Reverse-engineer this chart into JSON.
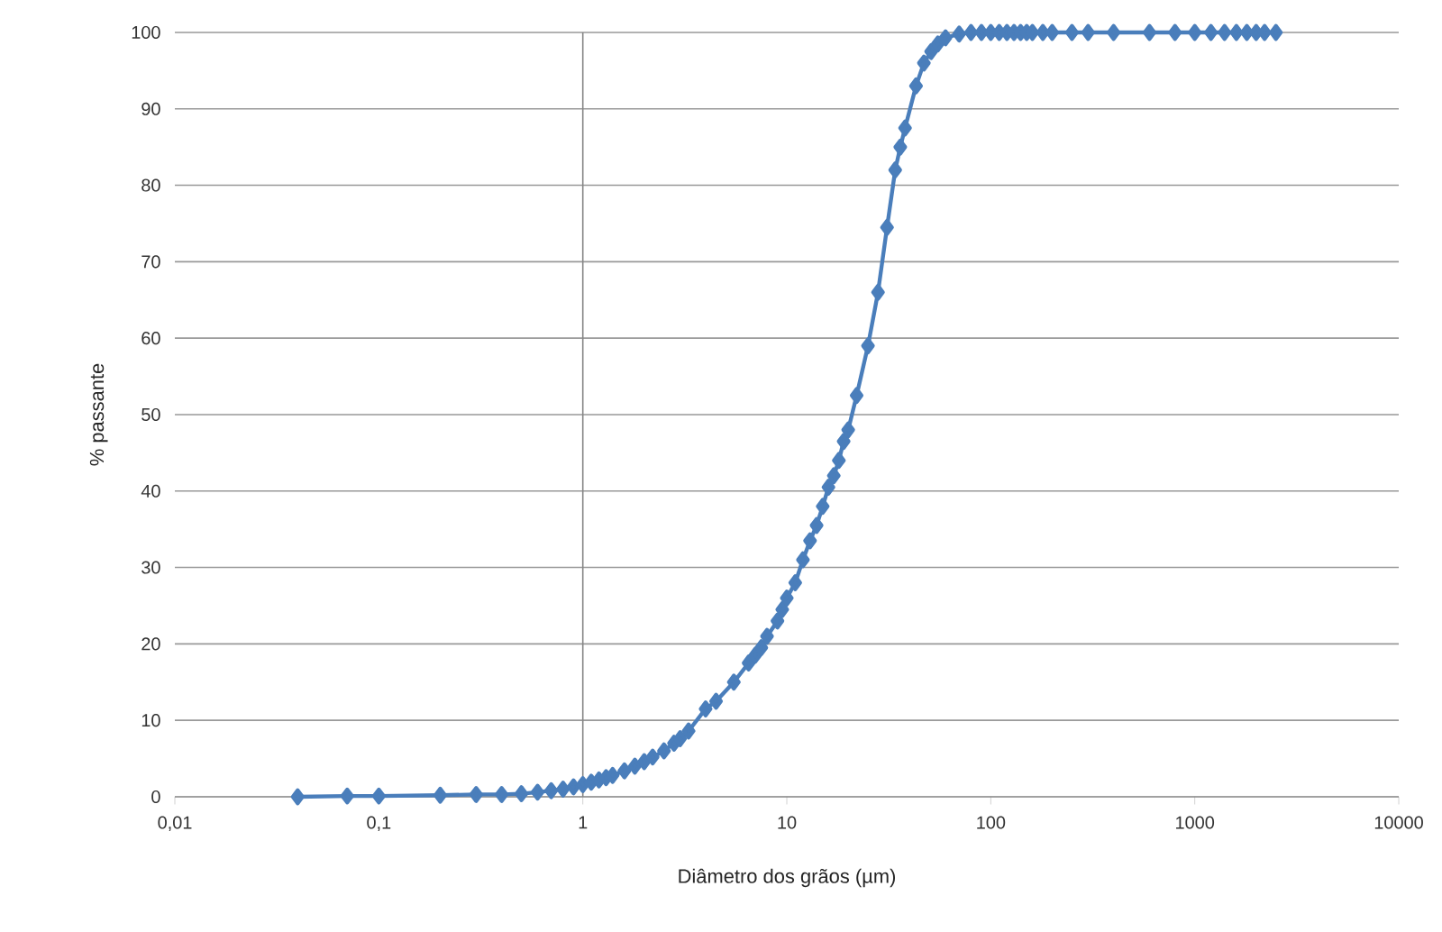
{
  "chart_data": {
    "type": "line",
    "xlabel": "Diâmetro dos grãos (µm)",
    "ylabel": "% passante",
    "log": "x",
    "grid": "y",
    "marker": "diamond",
    "line_style": "solid",
    "xlim": [
      0.01,
      10000
    ],
    "ylim": [
      0,
      100
    ],
    "xticks": [
      {
        "value": 0.01,
        "label": "0,01"
      },
      {
        "value": 0.1,
        "label": "0,1"
      },
      1,
      10,
      100,
      1000,
      10000
    ],
    "yticks": [
      0,
      10,
      20,
      30,
      40,
      50,
      60,
      70,
      80,
      90,
      100
    ],
    "ref_lines": [
      {
        "axis": "x",
        "value": 1,
        "color": "#868686"
      }
    ],
    "series": [
      {
        "color": "#4a7ebb",
        "x": [
          0.04,
          0.07,
          0.1,
          0.2,
          0.3,
          0.4,
          0.5,
          0.6,
          0.7,
          0.8,
          0.9,
          1.0,
          1.1,
          1.2,
          1.3,
          1.4,
          1.6,
          1.8,
          2.0,
          2.2,
          2.5,
          2.8,
          3.0,
          3.3,
          4.0,
          4.5,
          5.5,
          6.5,
          7,
          7.5,
          8,
          9,
          9.5,
          10,
          11,
          12,
          13,
          14,
          15,
          16,
          17,
          18,
          19,
          20,
          22,
          25,
          28,
          31,
          34,
          36,
          38,
          43,
          47,
          51,
          55,
          60,
          70,
          80,
          90,
          100,
          110,
          120,
          130,
          140,
          150,
          160,
          180,
          200,
          250,
          300,
          400,
          600,
          800,
          1000,
          1200,
          1400,
          1600,
          1800,
          2000,
          2200,
          2500
        ],
        "values": [
          0,
          0.1,
          0.1,
          0.2,
          0.3,
          0.3,
          0.4,
          0.6,
          0.8,
          1.0,
          1.3,
          1.6,
          1.9,
          2.2,
          2.5,
          2.8,
          3.4,
          4.0,
          4.6,
          5.2,
          6.0,
          7.0,
          7.6,
          8.6,
          11.5,
          12.5,
          15,
          17.5,
          18.5,
          19.5,
          21,
          23,
          24.5,
          26,
          28,
          31,
          33.5,
          35.5,
          38,
          40.5,
          42,
          44,
          46.5,
          48,
          52.5,
          59,
          66,
          74.5,
          82,
          85,
          87.5,
          93,
          96,
          97.5,
          98.5,
          99.3,
          99.8,
          100,
          100,
          100,
          100,
          100,
          100,
          100,
          100,
          100,
          100,
          100,
          100,
          100,
          100,
          100,
          100,
          100,
          100,
          100,
          100,
          100,
          100,
          100,
          100
        ]
      }
    ]
  }
}
